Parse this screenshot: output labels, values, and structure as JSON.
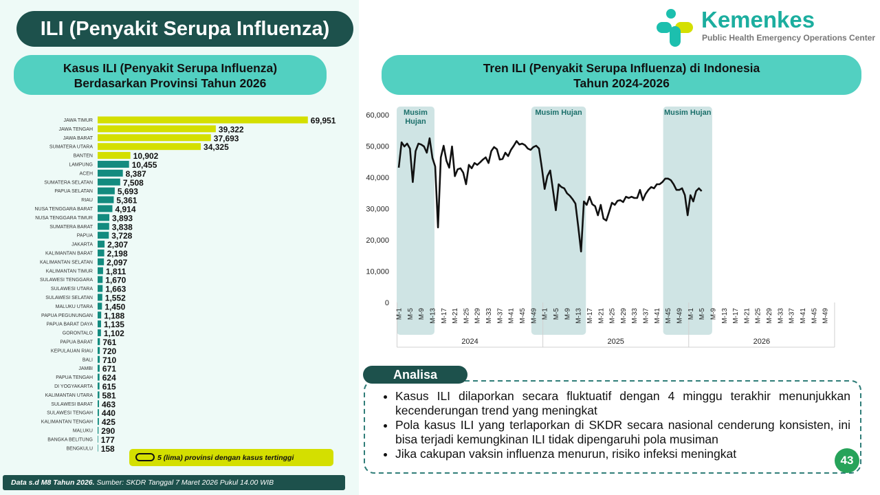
{
  "title": "ILI (Penyakit Serupa Influenza)",
  "logo": {
    "name": "Kemenkes",
    "tagline": "Public Health Emergency Operations Center"
  },
  "chart_data": [
    {
      "type": "hbar",
      "subtitle": [
        "Kasus ILI (Penyakit Serupa Influenza)",
        "Berdasarkan Provinsi Tahun 2026"
      ],
      "categories": [
        "JAWA TIMUR",
        "JAWA TENGAH",
        "JAWA BARAT",
        "SUMATERA UTARA",
        "BANTEN",
        "LAMPUNG",
        "ACEH",
        "SUMATERA SELATAN",
        "PAPUA SELATAN",
        "RIAU",
        "NUSA TENGGARA BARAT",
        "NUSA TENGGARA TIMUR",
        "SUMATERA BARAT",
        "PAPUA",
        "JAKARTA",
        "KALIMANTAN BARAT",
        "KALIMANTAN SELATAN",
        "KALIMANTAN TIMUR",
        "SULAWESI TENGGARA",
        "SULAWESI UTARA",
        "SULAWESI SELATAN",
        "MALUKU UTARA",
        "PAPUA PEGUNUNGAN",
        "PAPUA BARAT DAYA",
        "GORONTALO",
        "PAPUA BARAT",
        "KEPULAUAN RIAU",
        "BALI",
        "JAMBI",
        "PAPUA TENGAH",
        "DI YOGYAKARTA",
        "KALIMANTAN UTARA",
        "SULAWESI BARAT",
        "SULAWESI TENGAH",
        "KALIMANTAN TENGAH",
        "MALUKU",
        "BANGKA BELITUNG",
        "BENGKULU"
      ],
      "values": [
        69951,
        39322,
        37693,
        34325,
        10902,
        10455,
        8387,
        7508,
        5693,
        5361,
        4914,
        3893,
        3838,
        3728,
        2307,
        2198,
        2097,
        1811,
        1670,
        1663,
        1552,
        1450,
        1188,
        1135,
        1102,
        761,
        720,
        710,
        671,
        624,
        615,
        581,
        463,
        440,
        425,
        290,
        177,
        158
      ],
      "value_labels": [
        "69,951",
        "39,322",
        "37,693",
        "34,325",
        "10,902",
        "10,455",
        "8,387",
        "7,508",
        "5,693",
        "5,361",
        "4,914",
        "3,893",
        "3,838",
        "3,728",
        "2,307",
        "2,198",
        "2,097",
        "1,811",
        "1,670",
        "1,663",
        "1,552",
        "1,450",
        "1,188",
        "1,135",
        "1,102",
        "761",
        "720",
        "710",
        "671",
        "624",
        "615",
        "581",
        "463",
        "440",
        "425",
        "290",
        "177",
        "158"
      ],
      "colors": [
        "#d4df00",
        "#d4df00",
        "#d4df00",
        "#d4df00",
        "#d4df00",
        "#138b7f",
        "#138b7f",
        "#138b7f",
        "#138b7f",
        "#138b7f",
        "#138b7f",
        "#138b7f",
        "#138b7f",
        "#138b7f",
        "#138b7f",
        "#138b7f",
        "#138b7f",
        "#138b7f",
        "#138b7f",
        "#138b7f",
        "#138b7f",
        "#138b7f",
        "#138b7f",
        "#138b7f",
        "#138b7f",
        "#138b7f",
        "#138b7f",
        "#138b7f",
        "#138b7f",
        "#138b7f",
        "#138b7f",
        "#138b7f",
        "#138b7f",
        "#138b7f",
        "#138b7f",
        "#138b7f",
        "#138b7f",
        "#138b7f"
      ],
      "xlim": [
        0,
        70000
      ],
      "legend": {
        "text": "5 (lima) provinsi dengan kasus tertinggi",
        "color": "#d4df00"
      }
    },
    {
      "type": "line",
      "subtitle": [
        "Tren ILI (Penyakit Serupa Influenza) di Indonesia",
        "Tahun 2024-2026"
      ],
      "color": "#111111",
      "categories": [
        "M-1",
        null,
        null,
        null,
        "M-5",
        null,
        null,
        null,
        "M-9",
        null,
        null,
        null,
        "M-13",
        null,
        null,
        null,
        "M-17",
        null,
        null,
        null,
        "M-21",
        null,
        null,
        null,
        "M-25",
        null,
        null,
        null,
        "M-29",
        null,
        null,
        null,
        "M-33",
        null,
        null,
        null,
        "M-37",
        null,
        null,
        null,
        "M-41",
        null,
        null,
        null,
        "M-45",
        null,
        null,
        null,
        "M-49",
        null,
        null,
        null,
        "M-1",
        null,
        null,
        null,
        "M-5",
        null,
        null,
        null,
        "M-9",
        null,
        null,
        null,
        "M-13",
        null,
        null,
        null,
        "M-17",
        null,
        null,
        null,
        "M-21",
        null,
        null,
        null,
        "M-25",
        null,
        null,
        null,
        "M-29",
        null,
        null,
        null,
        "M-33",
        null,
        null,
        null,
        "M-37",
        null,
        null,
        null,
        "M-41",
        null,
        null,
        null,
        "M-45",
        null,
        null,
        null,
        "M-49",
        null,
        null,
        null,
        "M-1",
        null,
        null,
        null,
        "M-5",
        null,
        null,
        null,
        "M-9",
        null,
        null,
        null,
        "M-13",
        null,
        null,
        null,
        "M-17",
        null,
        null,
        null,
        "M-21",
        null,
        null,
        null,
        "M-25",
        null,
        null,
        null,
        "M-29",
        null,
        null,
        null,
        "M-33",
        null,
        null,
        null,
        "M-37",
        null,
        null,
        null,
        "M-41",
        null,
        null,
        null,
        "M-45",
        null,
        null,
        null,
        "M-49",
        null,
        null,
        null
      ],
      "x_groups": [
        "2024",
        "2025",
        "2026"
      ],
      "values": [
        43100,
        51200,
        49900,
        50800,
        49200,
        38500,
        48400,
        50800,
        50500,
        49900,
        47900,
        52500,
        46200,
        43500,
        24000,
        46400,
        50100,
        45300,
        43100,
        49900,
        40400,
        42600,
        42900,
        41500,
        37800,
        44000,
        42900,
        44600,
        44000,
        44800,
        45700,
        46400,
        44600,
        48400,
        49700,
        49000,
        45700,
        45900,
        47900,
        46800,
        48800,
        50100,
        51600,
        50500,
        50800,
        50300,
        49200,
        48800,
        49700,
        50100,
        49200,
        43100,
        36300,
        40400,
        42200,
        35800,
        29500,
        37800,
        36900,
        36500,
        34900,
        34100,
        33000,
        31600,
        24200,
        16300,
        32300,
        31200,
        33800,
        31400,
        30800,
        27900,
        31200,
        26800,
        26200,
        29000,
        31900,
        31200,
        32500,
        32700,
        32100,
        33800,
        33400,
        33800,
        33400,
        33400,
        36000,
        32700,
        34700,
        36000,
        36900,
        36500,
        37800,
        37800,
        38500,
        39600,
        39600,
        39100,
        37800,
        36000,
        36000,
        36500,
        34300,
        27900,
        34300,
        32300,
        35600,
        36500,
        35600,
        null,
        null,
        null,
        null,
        null,
        null,
        null,
        null,
        null,
        null,
        null,
        null,
        null,
        null,
        null,
        null,
        null,
        null,
        null,
        null,
        null,
        null,
        null,
        null,
        null,
        null,
        null,
        null,
        null,
        null,
        null,
        null,
        null,
        null,
        null,
        null,
        null,
        null,
        null,
        null,
        null,
        null,
        null,
        null,
        null,
        null,
        null
      ],
      "ylim": [
        0,
        60000
      ],
      "yticks": [
        0,
        {
          "value": 10000,
          "label": "10,000"
        },
        {
          "value": 20000,
          "label": "20,000"
        },
        {
          "value": 30000,
          "label": "30,000"
        },
        {
          "value": 40000,
          "label": "40,000"
        },
        {
          "value": 50000,
          "label": "50,000"
        },
        {
          "value": 60000,
          "label": "60,000"
        }
      ],
      "bands": [
        {
          "text": "Musim Hujan",
          "start": 0,
          "end": 12
        },
        {
          "text": "Musim Hujan",
          "start": 48,
          "end": 66
        },
        {
          "text": "Musim Hujan",
          "start": 95,
          "end": 111
        }
      ]
    }
  ],
  "analysis": {
    "title": "Analisa",
    "bullets": [
      "Kasus ILI dilaporkan secara fluktuatif dengan 4 minggu terakhir menunjukkan kecenderungan trend yang meningkat",
      "Pola kasus ILI yang terlaporkan di SKDR secara nasional cenderung konsisten, ini bisa terjadi kemungkinan ILI tidak dipengaruhi pola musiman",
      "Jika cakupan vaksin influenza menurun, risiko infeksi meningkat"
    ]
  },
  "footer": {
    "bold": "Data s.d M8 Tahun 2026.",
    "text": "Sumber: SKDR Tanggal 7 Maret 2026 Pukul 14.00 WIB"
  },
  "page_number": "43"
}
